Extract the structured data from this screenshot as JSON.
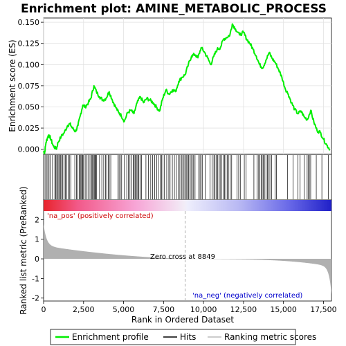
{
  "chart_data": {
    "type": "line",
    "title": "Enrichment plot: AMINE_METABOLIC_PROCESS",
    "ylabel_top": "Enrichment score (ES)",
    "ylabel_bottom": "Ranked list metric (PreRanked)",
    "xlabel": "Rank in Ordered Dataset",
    "x_range": [
      0,
      18000
    ],
    "x_ticks": [
      "0",
      "2,500",
      "5,000",
      "7,500",
      "10,000",
      "12,500",
      "15,000",
      "17,500"
    ],
    "x_tick_values": [
      0,
      2500,
      5000,
      7500,
      10000,
      12500,
      15000,
      17500
    ],
    "es_ylim": [
      -0.006,
      0.155
    ],
    "es_ticks": [
      "0.000",
      "0.025",
      "0.050",
      "0.075",
      "0.100",
      "0.125",
      "0.150"
    ],
    "es_tick_values": [
      0,
      0.025,
      0.05,
      0.075,
      0.1,
      0.125,
      0.15
    ],
    "metric_ylim": [
      -2.15,
      3.0
    ],
    "metric_ticks": [
      "2",
      "1",
      "0",
      "-1",
      "-2"
    ],
    "metric_tick_values": [
      2,
      1,
      0,
      -1,
      -2
    ],
    "enrichment_profile": [
      [
        0,
        -0.002
      ],
      [
        60,
        -0.005
      ],
      [
        150,
        0.008
      ],
      [
        250,
        0.014
      ],
      [
        330,
        0.017
      ],
      [
        450,
        0.012
      ],
      [
        600,
        0.004
      ],
      [
        800,
        0.0
      ],
      [
        900,
        0.008
      ],
      [
        1100,
        0.015
      ],
      [
        1300,
        0.02
      ],
      [
        1500,
        0.028
      ],
      [
        1650,
        0.03
      ],
      [
        1800,
        0.025
      ],
      [
        2000,
        0.021
      ],
      [
        2150,
        0.028
      ],
      [
        2300,
        0.04
      ],
      [
        2450,
        0.052
      ],
      [
        2600,
        0.05
      ],
      [
        2800,
        0.055
      ],
      [
        2950,
        0.06
      ],
      [
        3150,
        0.075
      ],
      [
        3300,
        0.068
      ],
      [
        3500,
        0.062
      ],
      [
        3700,
        0.058
      ],
      [
        3900,
        0.06
      ],
      [
        4100,
        0.068
      ],
      [
        4300,
        0.058
      ],
      [
        4500,
        0.05
      ],
      [
        4700,
        0.043
      ],
      [
        4850,
        0.04
      ],
      [
        5050,
        0.033
      ],
      [
        5250,
        0.043
      ],
      [
        5450,
        0.046
      ],
      [
        5650,
        0.042
      ],
      [
        5850,
        0.055
      ],
      [
        6050,
        0.062
      ],
      [
        6250,
        0.055
      ],
      [
        6450,
        0.06
      ],
      [
        6650,
        0.058
      ],
      [
        6850,
        0.055
      ],
      [
        7050,
        0.05
      ],
      [
        7250,
        0.045
      ],
      [
        7450,
        0.06
      ],
      [
        7650,
        0.07
      ],
      [
        7850,
        0.065
      ],
      [
        8050,
        0.07
      ],
      [
        8250,
        0.068
      ],
      [
        8450,
        0.08
      ],
      [
        8650,
        0.085
      ],
      [
        8849,
        0.088
      ],
      [
        9050,
        0.1
      ],
      [
        9250,
        0.11
      ],
      [
        9450,
        0.112
      ],
      [
        9650,
        0.108
      ],
      [
        9850,
        0.12
      ],
      [
        10050,
        0.115
      ],
      [
        10250,
        0.108
      ],
      [
        10450,
        0.1
      ],
      [
        10650,
        0.11
      ],
      [
        10850,
        0.118
      ],
      [
        11050,
        0.12
      ],
      [
        11250,
        0.13
      ],
      [
        11450,
        0.132
      ],
      [
        11650,
        0.135
      ],
      [
        11800,
        0.148
      ],
      [
        12000,
        0.142
      ],
      [
        12250,
        0.135
      ],
      [
        12500,
        0.138
      ],
      [
        12700,
        0.13
      ],
      [
        12900,
        0.125
      ],
      [
        13100,
        0.118
      ],
      [
        13300,
        0.11
      ],
      [
        13500,
        0.1
      ],
      [
        13700,
        0.096
      ],
      [
        13900,
        0.105
      ],
      [
        14100,
        0.114
      ],
      [
        14300,
        0.107
      ],
      [
        14500,
        0.102
      ],
      [
        14700,
        0.094
      ],
      [
        14900,
        0.085
      ],
      [
        15100,
        0.072
      ],
      [
        15300,
        0.065
      ],
      [
        15500,
        0.055
      ],
      [
        15700,
        0.047
      ],
      [
        15900,
        0.042
      ],
      [
        16100,
        0.045
      ],
      [
        16300,
        0.038
      ],
      [
        16500,
        0.035
      ],
      [
        16700,
        0.046
      ],
      [
        16900,
        0.032
      ],
      [
        17100,
        0.022
      ],
      [
        17300,
        0.02
      ],
      [
        17500,
        0.012
      ],
      [
        17700,
        0.005
      ],
      [
        17900,
        0.0
      ]
    ],
    "hit_ranks": [
      90,
      180,
      260,
      340,
      420,
      560,
      700,
      760,
      820,
      880,
      950,
      1010,
      1070,
      1130,
      1200,
      1290,
      1360,
      1440,
      1530,
      1610,
      1700,
      1950,
      2050,
      2150,
      2230,
      2290,
      2340,
      2400,
      2450,
      2500,
      2600,
      2700,
      2780,
      2900,
      3000,
      3060,
      3120,
      3170,
      3220,
      3260,
      3320,
      3500,
      3640,
      3760,
      3880,
      3960,
      4040,
      4110,
      4200,
      4650,
      4720,
      4800,
      4880,
      5050,
      5200,
      5300,
      5400,
      5520,
      5600,
      5660,
      5720,
      5780,
      5840,
      5900,
      5960,
      6050,
      6130,
      6400,
      6560,
      6700,
      6820,
      6950,
      7080,
      7180,
      7290,
      7370,
      7470,
      7560,
      7700,
      7830,
      7910,
      8050,
      8180,
      8300,
      8420,
      8520,
      8620,
      8700,
      8780,
      8860,
      8920,
      8990,
      9060,
      9140,
      9220,
      9300,
      9380,
      9470,
      9700,
      9780,
      9850,
      9920,
      10100,
      10400,
      10530,
      10650,
      10720,
      10800,
      10880,
      10960,
      11040,
      11130,
      11230,
      11310,
      11400,
      11480,
      11560,
      11660,
      11760,
      12100,
      12200,
      12300,
      12550,
      12650,
      13150,
      13350,
      13450,
      13520,
      13600,
      13670,
      13740,
      13810,
      13900,
      14000,
      14070,
      14150,
      14250,
      14480,
      14560,
      15260,
      15600,
      15900,
      16040,
      16300,
      16480,
      16560,
      16620,
      16700,
      17050,
      17400,
      17800
    ],
    "zero_cross_label": "Zero cross at 8849",
    "zero_cross_rank": 8849,
    "pos_label": "'na_pos' (positively correlated)",
    "neg_label": "'na_neg' (negatively correlated)",
    "legend": [
      {
        "label": "Enrichment profile",
        "color": "#00ee00"
      },
      {
        "label": "Hits",
        "color": "#000000"
      },
      {
        "label": "Ranking metric scores",
        "color": "#bbbbbb"
      }
    ],
    "colors": {
      "profile": "#00ee00",
      "metric_fill": "#b0b0b0",
      "pos_text": "#cc0000",
      "neg_text": "#0000cc",
      "zero_line": "#aaaaaa"
    }
  }
}
